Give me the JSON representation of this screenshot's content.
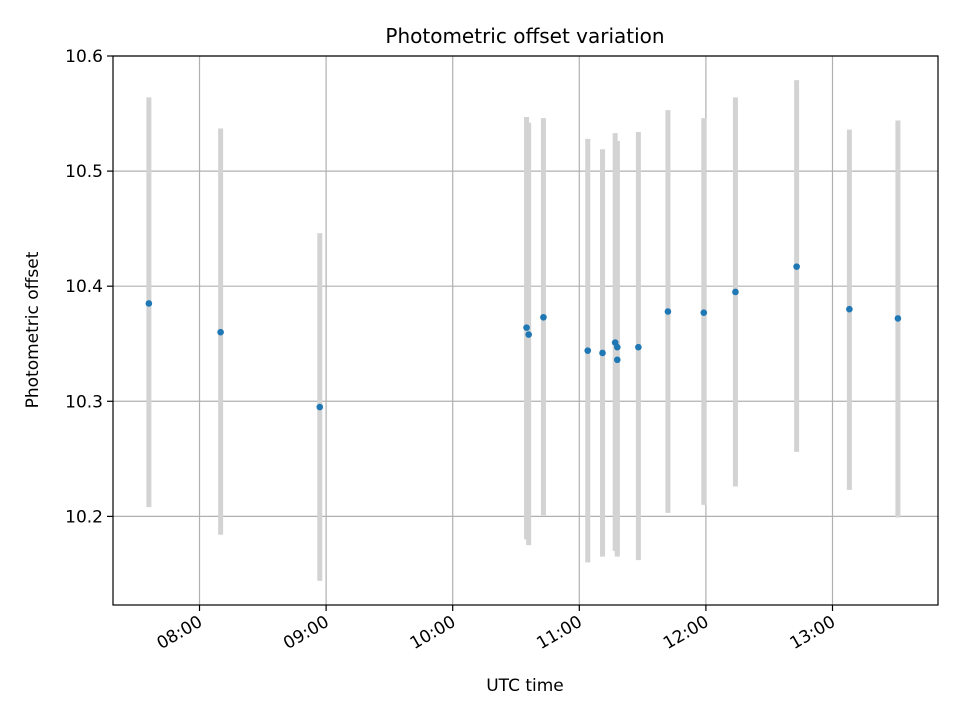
{
  "chart_data": {
    "type": "scatter",
    "title": "Photometric offset variation",
    "xlabel": "UTC time",
    "ylabel": "Photometric offset",
    "xlim": [
      "07:19",
      "13:50"
    ],
    "ylim": [
      10.123,
      10.6
    ],
    "grid": true,
    "x_ticks": [
      "08:00",
      "09:00",
      "10:00",
      "11:00",
      "12:00",
      "13:00"
    ],
    "y_ticks": [
      10.2,
      10.3,
      10.4,
      10.5,
      10.6
    ],
    "y_tick_labels": [
      "10.2",
      "10.3",
      "10.4",
      "10.5",
      "10.6"
    ],
    "colors": {
      "point": "#1f77b4",
      "errorbar": "#d3d3d3",
      "grid": "#b0b0b0"
    },
    "points": [
      {
        "x": "07:36",
        "y": 10.385,
        "ylow": 10.208,
        "yhigh": 10.564
      },
      {
        "x": "08:10",
        "y": 10.36,
        "ylow": 10.184,
        "yhigh": 10.537
      },
      {
        "x": "08:57",
        "y": 10.295,
        "ylow": 10.144,
        "yhigh": 10.446
      },
      {
        "x": "10:35",
        "y": 10.364,
        "ylow": 10.18,
        "yhigh": 10.547
      },
      {
        "x": "10:36",
        "y": 10.358,
        "ylow": 10.175,
        "yhigh": 10.542
      },
      {
        "x": "10:43",
        "y": 10.373,
        "ylow": 10.201,
        "yhigh": 10.546
      },
      {
        "x": "11:04",
        "y": 10.344,
        "ylow": 10.16,
        "yhigh": 10.528
      },
      {
        "x": "11:11",
        "y": 10.342,
        "ylow": 10.165,
        "yhigh": 10.519
      },
      {
        "x": "11:17",
        "y": 10.351,
        "ylow": 10.17,
        "yhigh": 10.533
      },
      {
        "x": "11:18",
        "y": 10.336,
        "ylow": 10.165,
        "yhigh": 10.526
      },
      {
        "x": "11:18",
        "y": 10.347,
        "ylow": 10.168,
        "yhigh": 10.526
      },
      {
        "x": "11:28",
        "y": 10.347,
        "ylow": 10.162,
        "yhigh": 10.534
      },
      {
        "x": "11:42",
        "y": 10.378,
        "ylow": 10.203,
        "yhigh": 10.553
      },
      {
        "x": "11:59",
        "y": 10.377,
        "ylow": 10.21,
        "yhigh": 10.546
      },
      {
        "x": "12:14",
        "y": 10.395,
        "ylow": 10.226,
        "yhigh": 10.564
      },
      {
        "x": "12:43",
        "y": 10.417,
        "ylow": 10.256,
        "yhigh": 10.579
      },
      {
        "x": "13:08",
        "y": 10.38,
        "ylow": 10.223,
        "yhigh": 10.536
      },
      {
        "x": "13:31",
        "y": 10.372,
        "ylow": 10.199,
        "yhigh": 10.544
      }
    ]
  }
}
